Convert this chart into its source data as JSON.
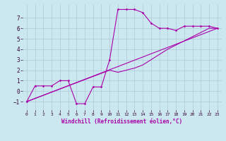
{
  "background_color": "#cbe8f0",
  "grid_color": "#b0c8d8",
  "line_color": "#aa00aa",
  "xlabel": "Windchill (Refroidissement éolien,°C)",
  "xlim": [
    -0.5,
    23.5
  ],
  "ylim": [
    -1.8,
    8.3
  ],
  "xticks": [
    0,
    1,
    2,
    3,
    4,
    5,
    6,
    7,
    8,
    9,
    10,
    11,
    12,
    13,
    14,
    15,
    16,
    17,
    18,
    19,
    20,
    21,
    22,
    23
  ],
  "yticks": [
    -1,
    0,
    1,
    2,
    3,
    4,
    5,
    6,
    7
  ],
  "series": [
    {
      "x": [
        0,
        1,
        2,
        3,
        4,
        5,
        6,
        7,
        8,
        9,
        10,
        11,
        12,
        13,
        14,
        15,
        16,
        17,
        18,
        19,
        20,
        21,
        22,
        23
      ],
      "y": [
        -1,
        0.5,
        0.5,
        0.5,
        1.0,
        1.0,
        -1.2,
        -1.2,
        0.4,
        0.4,
        3.0,
        7.8,
        7.8,
        7.8,
        7.5,
        6.5,
        6.0,
        6.0,
        5.8,
        6.2,
        6.2,
        6.2,
        6.2,
        6.0
      ],
      "marker": "D",
      "markersize": 1.5,
      "linewidth": 0.8
    },
    {
      "x": [
        0,
        23
      ],
      "y": [
        -1,
        6.0
      ],
      "marker": null,
      "markersize": 0,
      "linewidth": 0.8
    },
    {
      "x": [
        0,
        10,
        11,
        12,
        13,
        14,
        15,
        16,
        17,
        18,
        19,
        20,
        21,
        22,
        23
      ],
      "y": [
        -1,
        2.0,
        1.8,
        2.0,
        2.2,
        2.5,
        3.0,
        3.5,
        4.0,
        4.4,
        4.8,
        5.2,
        5.6,
        6.0,
        6.0
      ],
      "marker": null,
      "markersize": 0,
      "linewidth": 0.8
    }
  ],
  "xlabel_fontsize": 5.5,
  "tick_fontsize": 5.5,
  "xlabel_color": "#aa00aa"
}
